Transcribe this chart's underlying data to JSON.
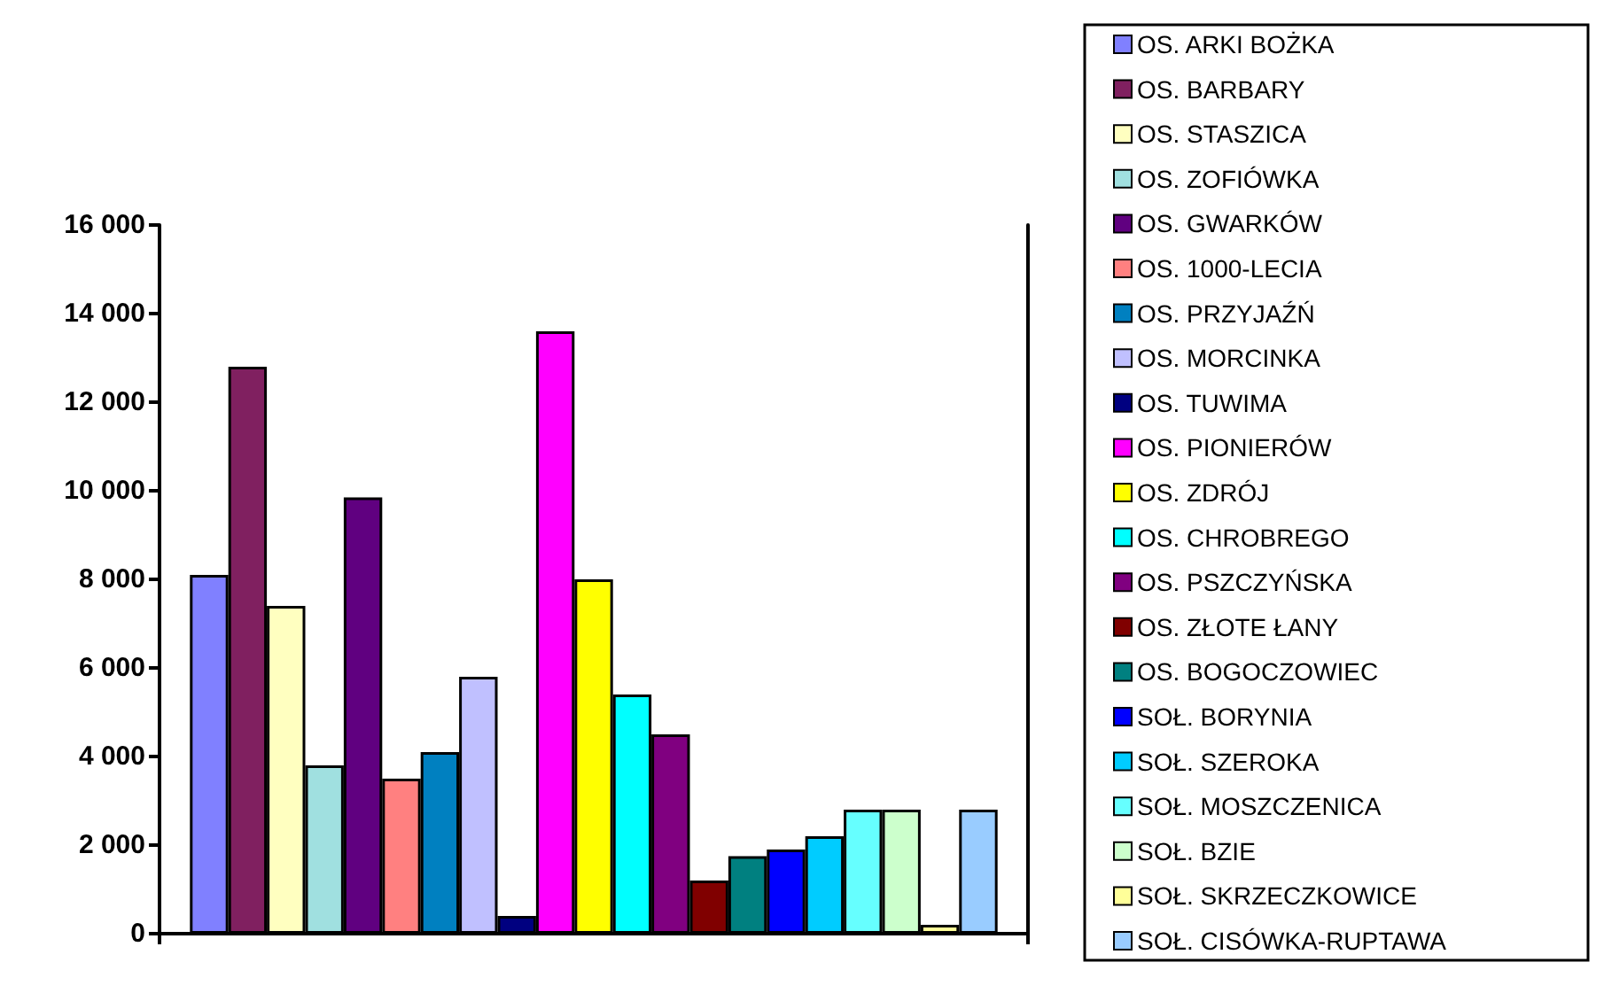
{
  "chart_data": {
    "type": "bar",
    "categories": [
      null
    ],
    "ylim": [
      0,
      16000
    ],
    "yticks": [
      0,
      2000,
      4000,
      6000,
      8000,
      10000,
      12000,
      14000,
      16000
    ],
    "legend": "right",
    "series": [
      {
        "name": "OS. ARKI BOŻKA",
        "color": "#8080ff",
        "values": [
          8100
        ]
      },
      {
        "name": "OS. BARBARY",
        "color": "#802060",
        "values": [
          12800
        ]
      },
      {
        "name": "OS. STASZICA",
        "color": "#ffffc0",
        "values": [
          7400
        ]
      },
      {
        "name": "OS. ZOFIÓWKA",
        "color": "#a0e0e0",
        "values": [
          3800
        ]
      },
      {
        "name": "OS. GWARKÓW",
        "color": "#600080",
        "values": [
          9850
        ]
      },
      {
        "name": "OS. 1000-LECIA",
        "color": "#ff8080",
        "values": [
          3500
        ]
      },
      {
        "name": "OS. PRZYJAŹŃ",
        "color": "#0080c0",
        "values": [
          4100
        ]
      },
      {
        "name": "OS. MORCINKA",
        "color": "#c0c0ff",
        "values": [
          5800
        ]
      },
      {
        "name": "OS. TUWIMA",
        "color": "#000080",
        "values": [
          400
        ]
      },
      {
        "name": "OS. PIONIERÓW",
        "color": "#ff00ff",
        "values": [
          13600
        ]
      },
      {
        "name": "OS. ZDRÓJ",
        "color": "#ffff00",
        "values": [
          8000
        ]
      },
      {
        "name": "OS. CHROBREGO",
        "color": "#00ffff",
        "values": [
          5400
        ]
      },
      {
        "name": "OS. PSZCZYŃSKA",
        "color": "#800080",
        "values": [
          4500
        ]
      },
      {
        "name": "OS. ZŁOTE ŁANY",
        "color": "#800000",
        "values": [
          1200
        ]
      },
      {
        "name": "OS. BOGOCZOWIEC",
        "color": "#008080",
        "values": [
          1750
        ]
      },
      {
        "name": "SOŁ. BORYNIA",
        "color": "#0000ff",
        "values": [
          1900
        ]
      },
      {
        "name": "SOŁ. SZEROKA",
        "color": "#00ccff",
        "values": [
          2200
        ]
      },
      {
        "name": "SOŁ. MOSZCZENICA",
        "color": "#66ffff",
        "values": [
          2800
        ]
      },
      {
        "name": "SOŁ. BZIE",
        "color": "#ccffcc",
        "values": [
          2800
        ]
      },
      {
        "name": "SOŁ. SKRZECZKOWICE",
        "color": "#ffff99",
        "values": [
          200
        ]
      },
      {
        "name": "SOŁ. CISÓWKA-RUPTAWA",
        "color": "#99ccff",
        "values": [
          2800
        ]
      }
    ]
  }
}
